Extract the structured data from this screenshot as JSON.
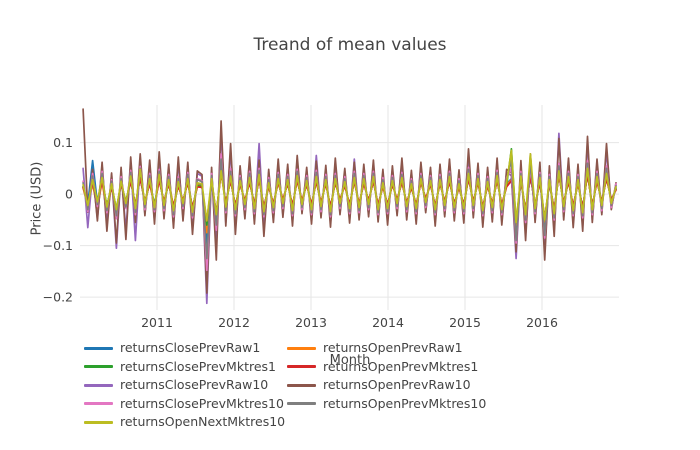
{
  "title": "Treand of mean values",
  "axes": {
    "x_title": "Month",
    "y_title": "Price (USD)",
    "x_tick_labels": [
      "2011",
      "2012",
      "2013",
      "2014",
      "2015",
      "2016"
    ],
    "y_tick_labels": [
      "0.1",
      "0",
      "−0.1",
      "−0.2"
    ]
  },
  "colors": {
    "text": "#444444",
    "grid": "#e6e6e6",
    "background": "#ffffff"
  },
  "chart_data": {
    "type": "line",
    "title": "Treand of mean values",
    "xlabel": "Month",
    "ylabel": "Price (USD)",
    "xlim": [
      2010,
      2017
    ],
    "ylim": [
      -0.225,
      0.173
    ],
    "grid": true,
    "legend_position": "bottom-horizontal-2col",
    "x_tick_values": [
      2011,
      2012,
      2013,
      2014,
      2015,
      2016
    ],
    "y_tick_values": [
      0.1,
      0,
      -0.1,
      -0.2
    ],
    "y_tick_labels": [
      "0.1",
      "0",
      "−0.1",
      "−0.2"
    ],
    "x_start": 2010.04,
    "x_step": 0.0618,
    "n_points": 113,
    "x_unit": "decimal_year",
    "series": [
      {
        "name": "returnsClosePrevRaw1",
        "color": "#1f77b4",
        "values": [
          0.015,
          -0.02,
          0.065,
          -0.018,
          0.028,
          -0.024,
          0.018,
          -0.035,
          0.022,
          -0.016,
          0.03,
          -0.026,
          0.036,
          -0.018,
          0.026,
          -0.022,
          0.032,
          -0.02,
          0.024,
          -0.028,
          0.022,
          -0.016,
          0.028,
          -0.03,
          0.02,
          0.018,
          -0.095,
          0.028,
          -0.045,
          0.052,
          -0.022,
          0.032,
          -0.028,
          0.024,
          -0.018,
          0.028,
          -0.024,
          0.034,
          -0.03,
          0.02,
          -0.024,
          0.028,
          -0.016,
          0.026,
          -0.028,
          0.032,
          -0.018,
          0.024,
          -0.026,
          0.03,
          -0.022,
          0.026,
          -0.03,
          0.028,
          -0.016,
          0.022,
          -0.026,
          0.03,
          -0.024,
          0.026,
          -0.018,
          0.03,
          -0.026,
          0.02,
          -0.026,
          0.024,
          -0.016,
          0.028,
          -0.022,
          0.018,
          -0.026,
          0.028,
          -0.014,
          0.024,
          -0.028,
          0.026,
          -0.02,
          0.03,
          -0.024,
          0.018,
          -0.026,
          0.036,
          -0.02,
          0.028,
          -0.03,
          0.022,
          -0.024,
          0.032,
          -0.026,
          0.02,
          0.03,
          -0.065,
          0.03,
          -0.038,
          0.04,
          -0.026,
          0.028,
          -0.058,
          0.026,
          -0.035,
          0.042,
          -0.022,
          0.03,
          -0.028,
          0.026,
          -0.032,
          0.045,
          -0.028,
          0.03,
          -0.02,
          0.038,
          -0.016,
          0.012
        ]
      },
      {
        "name": "returnsOpenPrevRaw1",
        "color": "#ff7f0e",
        "values": [
          0.012,
          -0.024,
          0.02,
          -0.03,
          0.026,
          -0.04,
          0.016,
          -0.032,
          0.024,
          -0.018,
          0.028,
          -0.024,
          0.034,
          -0.02,
          0.024,
          -0.026,
          0.03,
          -0.018,
          0.026,
          -0.024,
          0.02,
          -0.018,
          0.026,
          -0.032,
          0.018,
          0.016,
          -0.075,
          0.026,
          -0.042,
          0.048,
          -0.02,
          0.03,
          -0.026,
          0.022,
          -0.016,
          0.026,
          -0.022,
          0.032,
          -0.028,
          0.018,
          -0.022,
          0.026,
          -0.014,
          0.024,
          -0.026,
          0.03,
          -0.016,
          0.022,
          -0.024,
          0.028,
          -0.02,
          0.024,
          -0.028,
          0.026,
          -0.014,
          0.02,
          -0.024,
          0.028,
          -0.022,
          0.024,
          -0.016,
          0.028,
          -0.024,
          0.018,
          -0.024,
          0.022,
          -0.014,
          0.026,
          -0.02,
          0.016,
          -0.024,
          0.026,
          -0.012,
          0.022,
          -0.026,
          0.024,
          -0.018,
          0.028,
          -0.022,
          0.016,
          -0.024,
          0.034,
          -0.018,
          0.026,
          -0.028,
          0.02,
          -0.022,
          0.03,
          -0.024,
          0.018,
          0.028,
          -0.06,
          0.028,
          -0.035,
          0.038,
          -0.024,
          0.026,
          -0.054,
          0.024,
          -0.032,
          0.04,
          -0.02,
          0.028,
          -0.026,
          0.024,
          -0.03,
          0.042,
          -0.026,
          0.028,
          -0.018,
          0.035,
          -0.014,
          0.01
        ]
      },
      {
        "name": "returnsClosePrevMktres1",
        "color": "#2ca02c",
        "values": [
          0.014,
          -0.018,
          0.024,
          -0.014,
          0.026,
          -0.022,
          0.016,
          -0.028,
          0.02,
          -0.014,
          0.026,
          -0.022,
          0.032,
          -0.016,
          0.022,
          -0.02,
          0.028,
          -0.016,
          0.022,
          -0.026,
          0.018,
          -0.014,
          0.024,
          -0.028,
          0.016,
          0.015,
          -0.06,
          0.024,
          -0.038,
          0.044,
          -0.018,
          0.028,
          -0.024,
          0.02,
          -0.014,
          0.024,
          -0.02,
          0.03,
          -0.026,
          0.016,
          -0.02,
          0.024,
          -0.012,
          0.022,
          -0.024,
          0.028,
          -0.014,
          0.02,
          -0.022,
          0.026,
          -0.018,
          0.022,
          -0.026,
          0.024,
          -0.012,
          0.018,
          -0.022,
          0.026,
          -0.02,
          0.022,
          -0.014,
          0.026,
          -0.022,
          0.016,
          -0.022,
          0.02,
          -0.012,
          0.024,
          -0.018,
          0.014,
          -0.022,
          0.024,
          -0.01,
          0.02,
          -0.024,
          0.022,
          -0.016,
          0.026,
          -0.02,
          0.014,
          -0.022,
          0.032,
          -0.016,
          0.024,
          -0.026,
          0.018,
          -0.02,
          0.028,
          -0.022,
          0.016,
          0.088,
          -0.055,
          0.026,
          -0.032,
          0.036,
          -0.022,
          0.024,
          -0.05,
          0.022,
          -0.03,
          0.038,
          -0.018,
          0.026,
          -0.024,
          0.022,
          -0.028,
          0.04,
          -0.024,
          0.026,
          -0.016,
          0.032,
          -0.012,
          0.01
        ]
      },
      {
        "name": "returnsOpenPrevMktres1",
        "color": "#d62728",
        "values": [
          0.013,
          -0.02,
          0.022,
          -0.016,
          0.024,
          -0.024,
          0.014,
          -0.03,
          0.018,
          -0.015,
          0.024,
          -0.02,
          0.03,
          -0.014,
          0.02,
          -0.022,
          0.026,
          -0.014,
          0.02,
          -0.024,
          0.016,
          -0.012,
          0.022,
          -0.026,
          0.014,
          0.013,
          -0.052,
          0.022,
          -0.036,
          0.04,
          -0.016,
          0.026,
          -0.022,
          0.018,
          -0.012,
          0.022,
          -0.018,
          0.028,
          -0.024,
          0.014,
          -0.018,
          0.022,
          -0.01,
          0.02,
          -0.022,
          0.026,
          -0.012,
          0.018,
          -0.02,
          0.024,
          -0.016,
          0.02,
          -0.024,
          0.022,
          -0.01,
          0.016,
          -0.02,
          0.024,
          -0.018,
          0.02,
          -0.012,
          0.024,
          -0.02,
          0.014,
          -0.02,
          0.018,
          -0.01,
          0.022,
          -0.016,
          0.012,
          -0.02,
          0.022,
          -0.008,
          0.018,
          -0.022,
          0.02,
          -0.014,
          0.024,
          -0.018,
          0.012,
          -0.02,
          0.03,
          -0.014,
          0.022,
          -0.024,
          0.016,
          -0.018,
          0.026,
          -0.02,
          0.014,
          0.026,
          -0.05,
          0.024,
          -0.03,
          0.034,
          -0.02,
          0.022,
          -0.046,
          0.02,
          -0.028,
          0.036,
          -0.016,
          0.024,
          -0.022,
          0.02,
          -0.026,
          0.038,
          -0.022,
          0.024,
          -0.014,
          0.03,
          -0.01,
          0.008
        ]
      },
      {
        "name": "returnsClosePrevRaw10",
        "color": "#9467bd",
        "values": [
          0.05,
          -0.065,
          0.042,
          -0.048,
          0.055,
          -0.06,
          0.038,
          -0.105,
          0.045,
          -0.07,
          0.06,
          -0.09,
          0.065,
          -0.038,
          0.055,
          -0.05,
          0.07,
          -0.042,
          0.05,
          -0.058,
          0.062,
          -0.045,
          0.055,
          -0.065,
          0.04,
          0.035,
          -0.212,
          0.045,
          -0.105,
          0.122,
          -0.055,
          0.085,
          -0.065,
          0.048,
          -0.042,
          0.06,
          -0.05,
          0.098,
          -0.07,
          0.042,
          -0.048,
          0.058,
          -0.04,
          0.05,
          -0.054,
          0.065,
          -0.034,
          0.046,
          -0.05,
          0.075,
          -0.04,
          0.048,
          -0.056,
          0.06,
          -0.036,
          0.044,
          -0.05,
          0.068,
          -0.044,
          0.05,
          -0.04,
          0.058,
          -0.048,
          0.042,
          -0.052,
          0.048,
          -0.038,
          0.06,
          -0.044,
          0.04,
          -0.05,
          0.054,
          -0.032,
          0.046,
          -0.054,
          0.05,
          -0.04,
          0.058,
          -0.046,
          0.042,
          -0.05,
          0.075,
          -0.04,
          0.052,
          -0.056,
          0.046,
          -0.048,
          0.06,
          -0.052,
          0.042,
          0.036,
          -0.125,
          0.055,
          -0.078,
          0.065,
          -0.048,
          0.054,
          -0.112,
          0.048,
          -0.07,
          0.118,
          -0.044,
          0.06,
          -0.056,
          0.05,
          -0.062,
          0.1,
          -0.05,
          0.058,
          -0.036,
          0.085,
          -0.028,
          0.018
        ]
      },
      {
        "name": "returnsOpenPrevRaw10",
        "color": "#8c564b",
        "values": [
          0.165,
          -0.035,
          0.048,
          -0.052,
          0.062,
          -0.072,
          0.041,
          -0.095,
          0.052,
          -0.088,
          0.072,
          -0.055,
          0.078,
          -0.042,
          0.066,
          -0.058,
          0.082,
          -0.048,
          0.058,
          -0.066,
          0.072,
          -0.052,
          0.062,
          -0.078,
          0.045,
          0.038,
          -0.192,
          0.052,
          -0.128,
          0.142,
          -0.062,
          0.098,
          -0.078,
          0.055,
          -0.048,
          0.072,
          -0.058,
          0.066,
          -0.082,
          0.048,
          -0.055,
          0.068,
          -0.045,
          0.058,
          -0.062,
          0.075,
          -0.038,
          0.052,
          -0.058,
          0.064,
          -0.046,
          0.056,
          -0.064,
          0.07,
          -0.04,
          0.05,
          -0.056,
          0.062,
          -0.05,
          0.058,
          -0.044,
          0.066,
          -0.054,
          0.048,
          -0.06,
          0.055,
          -0.042,
          0.07,
          -0.05,
          0.046,
          -0.058,
          0.062,
          -0.036,
          0.052,
          -0.062,
          0.058,
          -0.044,
          0.068,
          -0.052,
          0.047,
          -0.056,
          0.088,
          -0.046,
          0.06,
          -0.064,
          0.052,
          -0.054,
          0.07,
          -0.06,
          0.048,
          0.042,
          -0.112,
          0.065,
          -0.09,
          0.078,
          -0.055,
          0.062,
          -0.128,
          0.055,
          -0.082,
          0.108,
          -0.05,
          0.07,
          -0.065,
          0.058,
          -0.072,
          0.112,
          -0.055,
          0.068,
          -0.04,
          0.098,
          -0.03,
          0.022
        ]
      },
      {
        "name": "returnsClosePrevMktres10",
        "color": "#e377c2",
        "values": [
          0.025,
          -0.034,
          0.04,
          -0.024,
          0.044,
          -0.036,
          0.028,
          -0.048,
          0.034,
          -0.028,
          0.046,
          -0.04,
          0.054,
          -0.03,
          0.04,
          -0.034,
          0.048,
          -0.032,
          0.038,
          -0.044,
          0.034,
          -0.028,
          0.042,
          -0.046,
          0.03,
          0.026,
          -0.148,
          0.04,
          -0.07,
          0.078,
          -0.036,
          0.05,
          -0.042,
          0.036,
          -0.03,
          0.044,
          -0.038,
          0.05,
          -0.044,
          0.032,
          -0.036,
          0.042,
          -0.028,
          0.038,
          -0.042,
          0.048,
          -0.03,
          0.036,
          -0.04,
          0.046,
          -0.034,
          0.038,
          -0.044,
          0.04,
          -0.028,
          0.034,
          -0.038,
          0.044,
          -0.036,
          0.04,
          -0.03,
          0.044,
          -0.04,
          0.032,
          -0.038,
          0.036,
          -0.028,
          0.042,
          -0.034,
          0.03,
          -0.038,
          0.04,
          -0.026,
          0.036,
          -0.04,
          0.038,
          -0.032,
          0.044,
          -0.036,
          0.03,
          -0.038,
          0.052,
          -0.032,
          0.04,
          -0.042,
          0.034,
          -0.036,
          0.046,
          -0.04,
          0.032,
          0.05,
          -0.095,
          0.044,
          -0.055,
          0.055,
          -0.038,
          0.042,
          -0.085,
          0.038,
          -0.05,
          0.06,
          -0.034,
          0.044,
          -0.042,
          0.038,
          -0.046,
          0.065,
          -0.04,
          0.044,
          -0.032,
          0.055,
          -0.026,
          0.02
        ]
      },
      {
        "name": "returnsOpenPrevMktres10",
        "color": "#7f7f7f",
        "values": [
          0.022,
          -0.03,
          0.035,
          -0.02,
          0.04,
          -0.032,
          0.025,
          -0.042,
          0.03,
          -0.025,
          0.042,
          -0.035,
          0.05,
          -0.026,
          0.036,
          -0.03,
          0.044,
          -0.028,
          0.034,
          -0.04,
          0.03,
          -0.024,
          0.038,
          -0.042,
          0.028,
          0.024,
          -0.125,
          0.036,
          -0.06,
          0.068,
          -0.032,
          0.044,
          -0.038,
          0.032,
          -0.026,
          0.04,
          -0.034,
          0.046,
          -0.04,
          0.028,
          -0.032,
          0.038,
          -0.024,
          0.034,
          -0.038,
          0.044,
          -0.026,
          0.032,
          -0.036,
          0.042,
          -0.03,
          0.034,
          -0.04,
          0.036,
          -0.024,
          0.03,
          -0.034,
          0.04,
          -0.032,
          0.036,
          -0.026,
          0.04,
          -0.036,
          0.028,
          -0.034,
          0.032,
          -0.024,
          0.038,
          -0.03,
          0.026,
          -0.034,
          0.036,
          -0.022,
          0.032,
          -0.036,
          0.034,
          -0.028,
          0.04,
          -0.032,
          0.026,
          -0.034,
          0.048,
          -0.028,
          0.036,
          -0.038,
          0.03,
          -0.032,
          0.042,
          -0.036,
          0.028,
          0.065,
          -0.09,
          0.04,
          -0.05,
          0.06,
          -0.034,
          0.038,
          -0.08,
          0.034,
          -0.046,
          0.055,
          -0.03,
          0.04,
          -0.038,
          0.034,
          -0.042,
          0.06,
          -0.036,
          0.04,
          -0.028,
          0.05,
          -0.022,
          0.016
        ]
      },
      {
        "name": "returnsOpenNextMktres10",
        "color": "#bcbd22",
        "values": [
          0.018,
          -0.022,
          0.028,
          -0.015,
          0.032,
          -0.025,
          0.02,
          -0.03,
          0.025,
          -0.018,
          0.035,
          -0.028,
          0.048,
          -0.02,
          0.03,
          -0.026,
          0.038,
          -0.022,
          0.028,
          -0.032,
          0.024,
          -0.018,
          0.03,
          -0.035,
          0.022,
          0.02,
          -0.052,
          0.03,
          -0.04,
          0.045,
          -0.025,
          0.035,
          -0.03,
          0.026,
          -0.02,
          0.032,
          -0.028,
          0.038,
          -0.034,
          0.022,
          -0.026,
          0.03,
          -0.018,
          0.028,
          -0.032,
          0.036,
          -0.02,
          0.026,
          -0.03,
          0.034,
          -0.024,
          0.028,
          -0.034,
          0.03,
          -0.018,
          0.024,
          -0.028,
          0.032,
          -0.026,
          0.03,
          -0.02,
          0.034,
          -0.03,
          0.022,
          -0.028,
          0.026,
          -0.018,
          0.032,
          -0.024,
          0.02,
          -0.028,
          0.03,
          -0.016,
          0.026,
          -0.03,
          0.028,
          -0.022,
          0.034,
          -0.026,
          0.02,
          -0.028,
          0.04,
          -0.022,
          0.03,
          -0.032,
          0.024,
          -0.026,
          0.036,
          -0.03,
          0.022,
          0.085,
          -0.055,
          0.035,
          -0.04,
          0.078,
          -0.028,
          0.032,
          -0.05,
          0.028,
          -0.038,
          0.045,
          -0.024,
          0.034,
          -0.032,
          0.028,
          -0.036,
          0.05,
          -0.03,
          0.034,
          -0.022,
          0.04,
          -0.018,
          0.014
        ]
      }
    ]
  }
}
